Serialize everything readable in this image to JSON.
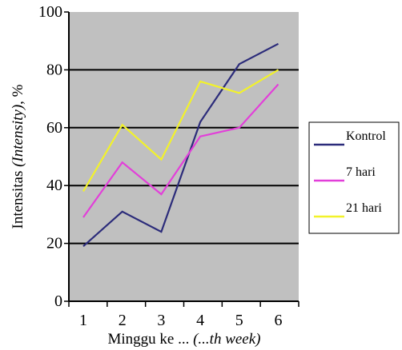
{
  "chart_data": {
    "type": "line",
    "categories": [
      "1",
      "2",
      "3",
      "4",
      "5",
      "6"
    ],
    "x": [
      1,
      2,
      3,
      4,
      5,
      6
    ],
    "series": [
      {
        "name": "Kontrol",
        "values": [
          19,
          31,
          24,
          62,
          82,
          89
        ],
        "color": "#2b2b7a"
      },
      {
        "name": "7 hari",
        "values": [
          29,
          48,
          37,
          57,
          60,
          75
        ],
        "color": "#e23fd9"
      },
      {
        "name": "21 hari",
        "values": [
          38,
          61,
          49,
          76,
          72,
          80
        ],
        "color": "#f2f22a"
      }
    ],
    "ylim": [
      0,
      100
    ],
    "yticks": [
      "0",
      "20",
      "40",
      "60",
      "80",
      "100"
    ],
    "ylabel": {
      "plain": "Intensitas ",
      "italic": "(Intensity)",
      "suffix": ", %"
    },
    "xlabel": {
      "plain": "Minggu ke ... ",
      "italic": "(...th week)"
    },
    "grid": true,
    "legend_position": "right",
    "plot_background": "#c0c0c0"
  }
}
